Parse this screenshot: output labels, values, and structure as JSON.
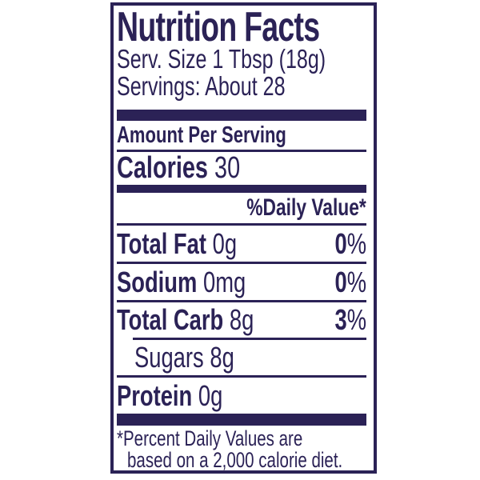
{
  "colors": {
    "ink": "#2b2256",
    "background": "#ffffff"
  },
  "label": {
    "title": "Nutrition Facts",
    "serving_size": "Serv. Size 1 Tbsp (18g)",
    "servings": "Servings: About 28",
    "amount_per_serving": "Amount Per Serving",
    "calories": {
      "label": "Calories",
      "value": "30"
    },
    "daily_value_header": "%Daily Value*",
    "rows": [
      {
        "name": "Total Fat",
        "amount": "0g",
        "daily_value": {
          "number": "0",
          "symbol": "%"
        }
      },
      {
        "name": "Sodium",
        "amount": "0mg",
        "daily_value": {
          "number": "0",
          "symbol": "%"
        }
      },
      {
        "name": "Total Carb",
        "amount": "8g",
        "daily_value": {
          "number": "3",
          "symbol": "%"
        }
      },
      {
        "name": "Sugars",
        "amount": "8g",
        "daily_value": {
          "number": "",
          "symbol": ""
        }
      },
      {
        "name": "Protein",
        "amount": "0g",
        "daily_value": {
          "number": "",
          "symbol": ""
        }
      }
    ],
    "footnote_line1": "*Percent Daily Values are",
    "footnote_line2": "based on a 2,000 calorie diet."
  }
}
